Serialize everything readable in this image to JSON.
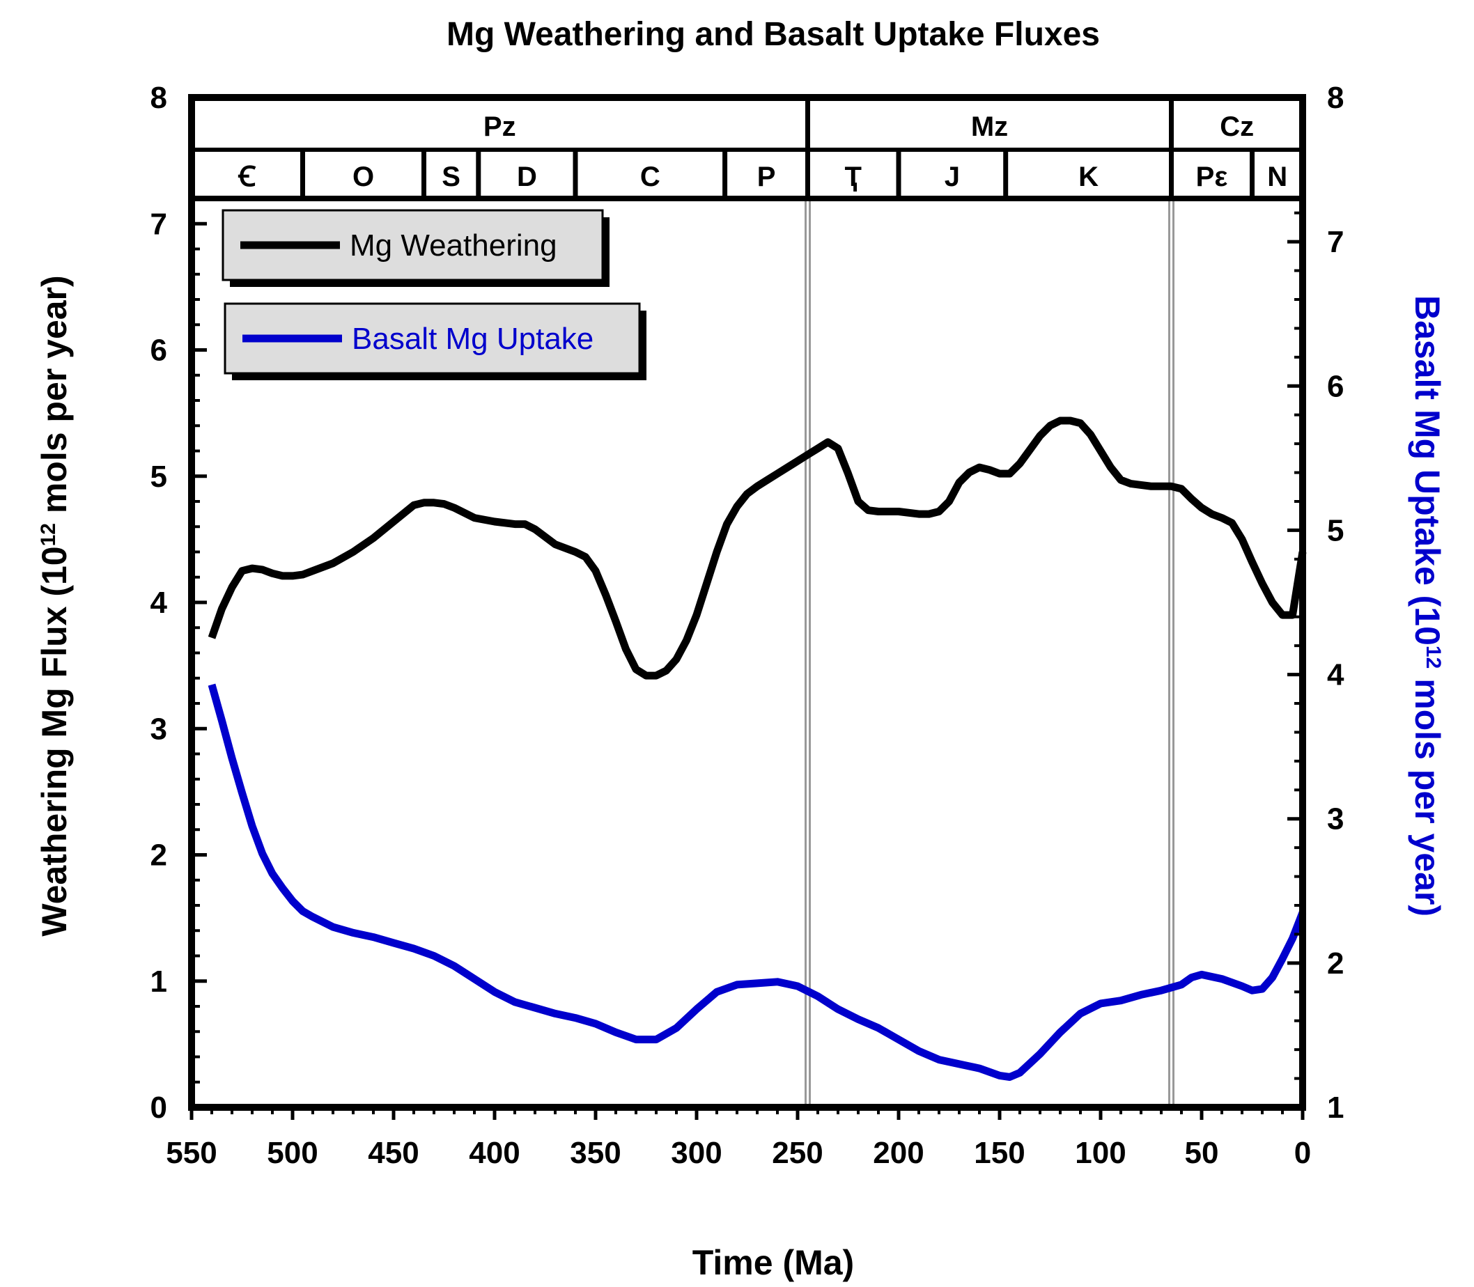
{
  "chart_data": {
    "type": "line",
    "title": "Mg Weathering and Basalt Uptake Fluxes",
    "xlabel": "Time (Ma)",
    "ylabel_left": {
      "main": "Weathering Mg Flux (10",
      "sup": "12",
      "rest": " mols per year)"
    },
    "ylabel_right": {
      "main": "Basalt Mg Uptake (10",
      "sup": "12",
      "rest": " mols per year)"
    },
    "xlim": [
      550,
      0
    ],
    "ylim_left": [
      0,
      8
    ],
    "ylim_right": [
      1,
      8
    ],
    "x_ticks": [
      550,
      500,
      450,
      400,
      350,
      300,
      250,
      200,
      150,
      100,
      50,
      0
    ],
    "y_ticks_left": [
      0,
      1,
      2,
      3,
      4,
      5,
      6,
      7,
      8
    ],
    "y_ticks_right": [
      1,
      2,
      3,
      4,
      5,
      6,
      7,
      8
    ],
    "grid": false,
    "legend_position": "top-left",
    "eras": [
      {
        "label": "Pz",
        "start": 550,
        "end": 245
      },
      {
        "label": "Mz",
        "start": 245,
        "end": 65
      },
      {
        "label": "Cz",
        "start": 65,
        "end": 0
      }
    ],
    "periods": [
      {
        "label": "Ꞓ",
        "start": 550,
        "end": 495
      },
      {
        "label": "O",
        "start": 495,
        "end": 435
      },
      {
        "label": "S",
        "start": 435,
        "end": 408
      },
      {
        "label": "D",
        "start": 408,
        "end": 360
      },
      {
        "label": "C",
        "start": 360,
        "end": 286
      },
      {
        "label": "P",
        "start": 286,
        "end": 245
      },
      {
        "label": "Ҭ",
        "start": 245,
        "end": 200
      },
      {
        "label": "J",
        "start": 200,
        "end": 147
      },
      {
        "label": "K",
        "start": 147,
        "end": 65
      },
      {
        "label": "Pε",
        "start": 65,
        "end": 25
      },
      {
        "label": "N",
        "start": 25,
        "end": 0
      }
    ],
    "boundaries": [
      245,
      65
    ],
    "series": [
      {
        "name": "Mg Weathering",
        "axis": "left",
        "color": "#000000",
        "x": [
          540,
          535,
          530,
          525,
          520,
          515,
          510,
          505,
          500,
          495,
          490,
          480,
          470,
          460,
          450,
          440,
          435,
          430,
          425,
          420,
          410,
          400,
          390,
          385,
          380,
          370,
          360,
          355,
          350,
          345,
          340,
          335,
          330,
          325,
          320,
          315,
          310,
          305,
          300,
          295,
          290,
          285,
          280,
          275,
          270,
          265,
          260,
          255,
          250,
          245,
          240,
          235,
          230,
          225,
          220,
          215,
          210,
          200,
          190,
          185,
          180,
          175,
          170,
          165,
          160,
          155,
          150,
          145,
          140,
          135,
          130,
          125,
          120,
          115,
          110,
          105,
          100,
          95,
          90,
          85,
          80,
          75,
          70,
          65,
          60,
          55,
          50,
          45,
          40,
          35,
          30,
          25,
          20,
          15,
          10,
          5,
          2,
          0
        ],
        "values": [
          3.72,
          3.95,
          4.12,
          4.25,
          4.27,
          4.26,
          4.23,
          4.21,
          4.21,
          4.22,
          4.25,
          4.31,
          4.4,
          4.51,
          4.64,
          4.77,
          4.79,
          4.79,
          4.78,
          4.75,
          4.67,
          4.64,
          4.62,
          4.62,
          4.58,
          4.46,
          4.4,
          4.36,
          4.25,
          4.06,
          3.85,
          3.63,
          3.47,
          3.42,
          3.42,
          3.46,
          3.55,
          3.7,
          3.9,
          4.15,
          4.4,
          4.62,
          4.76,
          4.86,
          4.92,
          4.97,
          5.02,
          5.07,
          5.12,
          5.17,
          5.22,
          5.27,
          5.22,
          5.02,
          4.8,
          4.73,
          4.72,
          4.72,
          4.7,
          4.7,
          4.72,
          4.8,
          4.95,
          5.03,
          5.07,
          5.05,
          5.02,
          5.02,
          5.1,
          5.21,
          5.32,
          5.4,
          5.44,
          5.44,
          5.42,
          5.33,
          5.2,
          5.07,
          4.97,
          4.94,
          4.93,
          4.92,
          4.92,
          4.92,
          4.9,
          4.82,
          4.75,
          4.7,
          4.67,
          4.63,
          4.5,
          4.32,
          4.15,
          4.0,
          3.9,
          3.9,
          4.2,
          4.4
        ]
      },
      {
        "name": "Basalt Mg Uptake",
        "axis": "right",
        "color": "#0000cc",
        "x": [
          540,
          535,
          530,
          525,
          520,
          515,
          510,
          505,
          500,
          495,
          490,
          480,
          470,
          460,
          450,
          440,
          430,
          420,
          410,
          400,
          390,
          380,
          370,
          360,
          350,
          340,
          330,
          320,
          310,
          300,
          290,
          280,
          270,
          260,
          250,
          240,
          230,
          220,
          210,
          200,
          190,
          180,
          170,
          160,
          150,
          145,
          140,
          130,
          120,
          110,
          100,
          90,
          80,
          70,
          65,
          60,
          55,
          50,
          40,
          30,
          25,
          20,
          15,
          10,
          5,
          0
        ],
        "values": [
          3.93,
          3.68,
          3.42,
          3.18,
          2.95,
          2.76,
          2.62,
          2.52,
          2.43,
          2.36,
          2.32,
          2.25,
          2.21,
          2.18,
          2.14,
          2.1,
          2.05,
          1.98,
          1.89,
          1.8,
          1.73,
          1.69,
          1.65,
          1.62,
          1.58,
          1.52,
          1.47,
          1.47,
          1.55,
          1.68,
          1.8,
          1.85,
          1.86,
          1.87,
          1.84,
          1.77,
          1.68,
          1.61,
          1.55,
          1.47,
          1.39,
          1.33,
          1.3,
          1.27,
          1.22,
          1.21,
          1.24,
          1.37,
          1.52,
          1.65,
          1.72,
          1.74,
          1.78,
          1.81,
          1.83,
          1.85,
          1.9,
          1.92,
          1.89,
          1.84,
          1.81,
          1.82,
          1.9,
          2.03,
          2.17,
          2.35
        ]
      }
    ]
  },
  "legend": [
    {
      "label": "Mg Weathering",
      "color": "#000000"
    },
    {
      "label": "Basalt Mg Uptake",
      "color": "#0000cc"
    }
  ],
  "colors": {
    "axis": "#000000",
    "boundary_line": "#999999",
    "legend_fill": "#dddddd",
    "right_axis_title": "#0000cc"
  }
}
